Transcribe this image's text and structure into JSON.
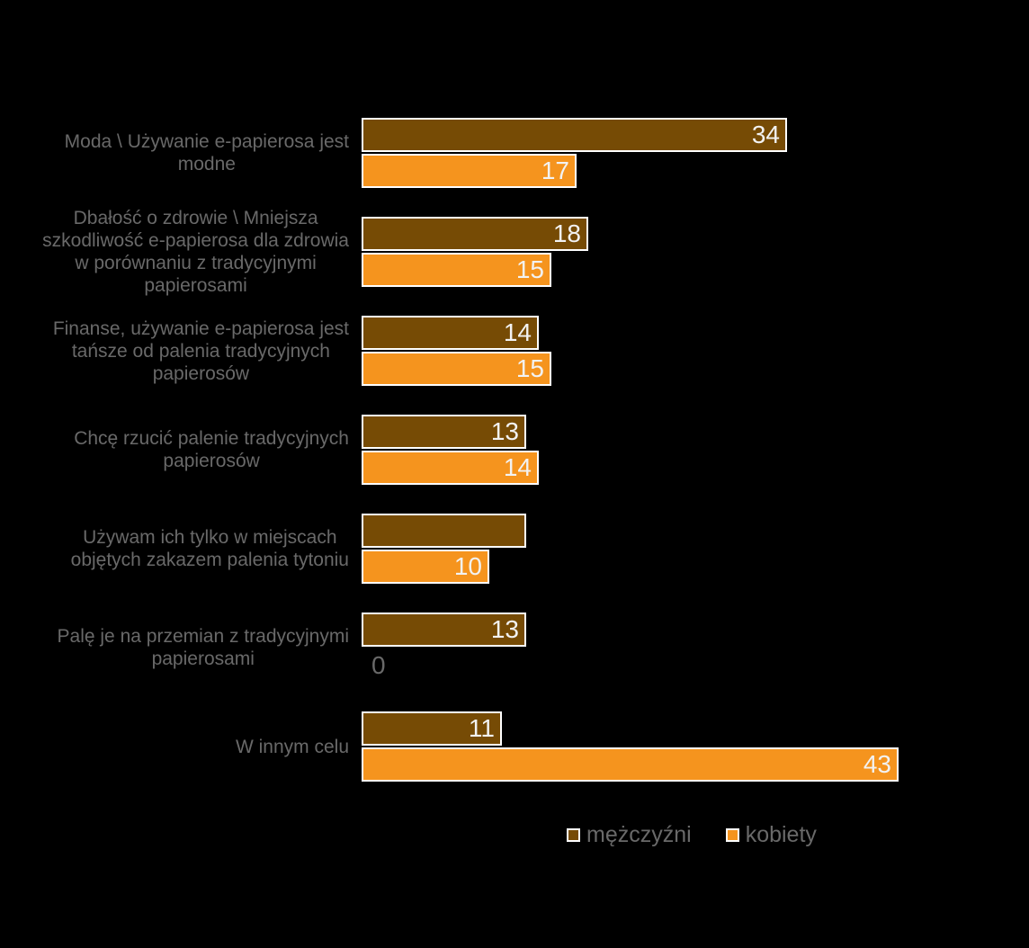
{
  "chart_data": {
    "type": "bar",
    "orientation": "horizontal",
    "title": "",
    "xlabel": "",
    "ylabel": "",
    "xlim": [
      0,
      50
    ],
    "grid": false,
    "background_color": "#000000",
    "category_label_color": "#696969",
    "value_label_color": "#F2F2F2",
    "zero_label_color": "#696969",
    "bar_border_color": "#ffffff",
    "legend_position": "bottom",
    "categories": [
      "Moda \\ Używanie e-papierosa jest modne",
      "Dbałość o zdrowie \\ Mniejsza szkodliwość e-papierosa dla zdrowia w porównaniu z tradycyjnymi papierosami",
      "Finanse, używanie e-papierosa jest tańsze od palenia tradycyjnych papierosów",
      "Chcę rzucić palenie tradycyjnych papierosów",
      "Używam ich tylko w miejscach objętych zakazem palenia tytoniu",
      "Palę je na przemian z tradycyjnymi papierosami",
      "W innym celu"
    ],
    "category_lines": [
      [
        "Moda \\ Używanie e-papierosa jest",
        "modne"
      ],
      [
        "Dbałość o zdrowie \\ Mniejsza",
        "szkodliwość e-papierosa dla zdrowia",
        "w porównaniu z tradycyjnymi",
        "papierosami"
      ],
      [
        "Finanse, używanie e-papierosa jest",
        "tańsze od palenia tradycyjnych",
        "papierosów"
      ],
      [
        "Chcę rzucić palenie tradycyjnych",
        "papierosów"
      ],
      [
        "Używam ich tylko w miejscach",
        "objętych zakazem palenia tytoniu"
      ],
      [
        "Palę je na przemian z tradycyjnymi",
        "papierosami"
      ],
      [
        "W innym celu"
      ]
    ],
    "series": [
      {
        "name": "mężczyźni",
        "color": "#764B05",
        "values": [
          34,
          18,
          14,
          13,
          13,
          13,
          11
        ],
        "labels": [
          "34",
          "18",
          "14",
          "13",
          "",
          "13",
          "11"
        ]
      },
      {
        "name": "kobiety",
        "color": "#F5941E",
        "values": [
          17,
          15,
          15,
          14,
          10,
          0,
          43
        ],
        "labels": [
          "17",
          "15",
          "15",
          "14",
          "10",
          "0",
          "43"
        ]
      }
    ]
  }
}
